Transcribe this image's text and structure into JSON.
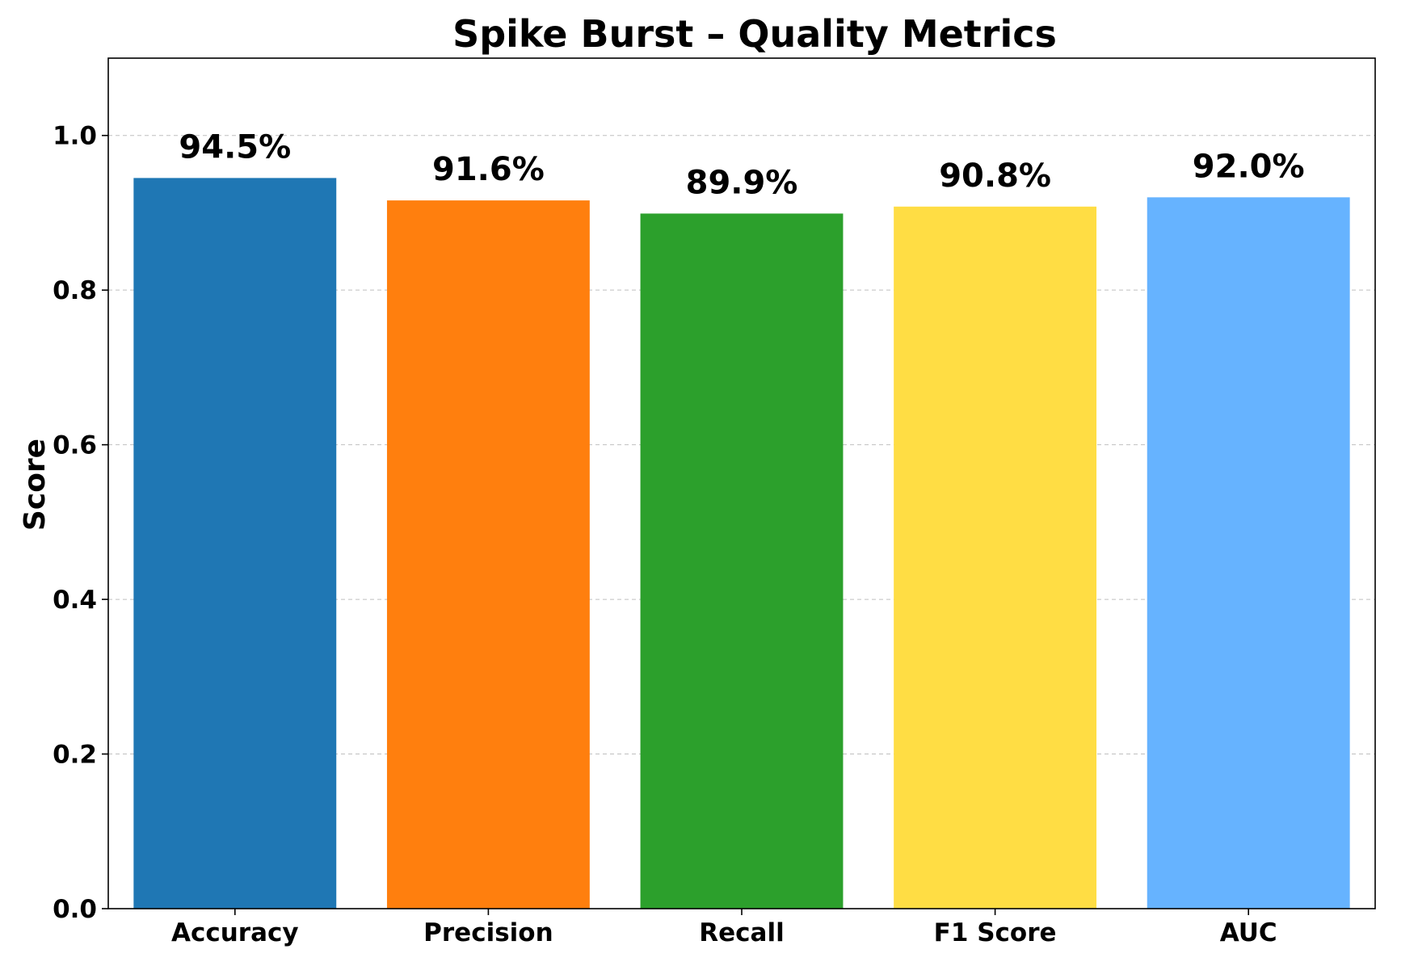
{
  "chart_data": {
    "type": "bar",
    "title": "Spike Burst – Quality Metrics",
    "xlabel": "",
    "ylabel": "Score",
    "ylim": [
      0,
      1.1
    ],
    "yticks": [
      0.0,
      0.2,
      0.4,
      0.6,
      0.8,
      1.0
    ],
    "ytick_labels": [
      "0.0",
      "0.2",
      "0.4",
      "0.6",
      "0.8",
      "1.0"
    ],
    "grid": "y-dashed",
    "categories": [
      "Accuracy",
      "Precision",
      "Recall",
      "F1 Score",
      "AUC"
    ],
    "values": [
      0.945,
      0.916,
      0.899,
      0.908,
      0.92
    ],
    "data_labels": [
      "94.5%",
      "91.6%",
      "89.9%",
      "90.8%",
      "92.0%"
    ],
    "colors": [
      "#1f77b4",
      "#ff7f0e",
      "#2ca02c",
      "#ffdd44",
      "#66b3ff"
    ]
  }
}
